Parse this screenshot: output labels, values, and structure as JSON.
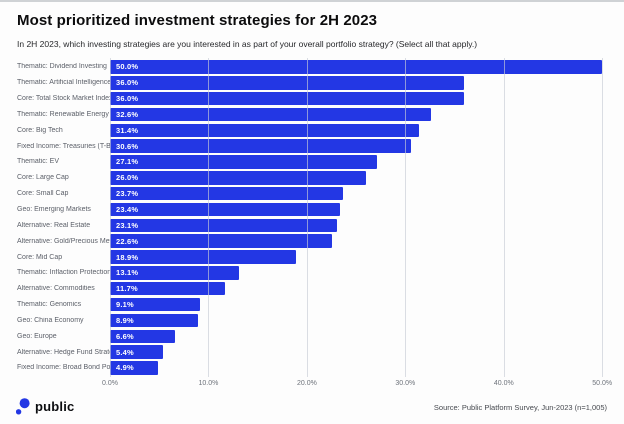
{
  "header": {
    "title": "Most prioritized investment strategies for 2H 2023",
    "subtitle": "In 2H 2023, which investing strategies are you interested in as part of your overall portfolio strategy? (Select all that apply.)"
  },
  "chart_data": {
    "type": "bar",
    "orientation": "horizontal",
    "categories": [
      "Thematic: Dividend Investing",
      "Thematic: Artificial Intelligence",
      "Core: Total Stock Market Index",
      "Thematic: Renewable Energy",
      "Core: Big Tech",
      "Fixed Income: Treasuries (T-Bill)",
      "Thematic: EV",
      "Core: Large Cap",
      "Core: Small Cap",
      "Geo: Emerging Markets",
      "Alternative: Real Estate",
      "Alternative: Gold/Precious Metals",
      "Core: Mid Cap",
      "Thematic: Inflaction Protection",
      "Alternative: Commodities",
      "Thematic: Genomics",
      "Geo: China Economy",
      "Geo: Europe",
      "Alternative: Hedge Fund Strategy",
      "Fixed Income: Broad Bond Portfolio"
    ],
    "values": [
      50.0,
      36.0,
      36.0,
      32.6,
      31.4,
      30.6,
      27.1,
      26.0,
      23.7,
      23.4,
      23.1,
      22.6,
      18.9,
      13.1,
      11.7,
      9.1,
      8.9,
      6.6,
      5.4,
      4.9
    ],
    "value_labels": [
      "50.0%",
      "36.0%",
      "36.0%",
      "32.6%",
      "31.4%",
      "30.6%",
      "27.1%",
      "26.0%",
      "23.7%",
      "23.4%",
      "23.1%",
      "22.6%",
      "18.9%",
      "13.1%",
      "11.7%",
      "9.1%",
      "8.9%",
      "6.6%",
      "5.4%",
      "4.9%"
    ],
    "x_tick_labels": [
      "0.0%",
      "10.0%",
      "20.0%",
      "30.0%",
      "40.0%",
      "50.0%"
    ],
    "x_tick_values": [
      0,
      10,
      20,
      30,
      40,
      50
    ],
    "xlim": [
      0,
      51.5
    ],
    "xlabel": "",
    "ylabel": "",
    "title": "Most prioritized investment strategies for 2H 2023",
    "bar_color": "#2337e4",
    "grid": true,
    "legend": false
  },
  "footer": {
    "brand": "public",
    "brand_icon": "public-dot-logo",
    "brand_color": "#2337e4",
    "source": "Source: Public Platform Survey, Jun-2023 (n=1,005)"
  }
}
